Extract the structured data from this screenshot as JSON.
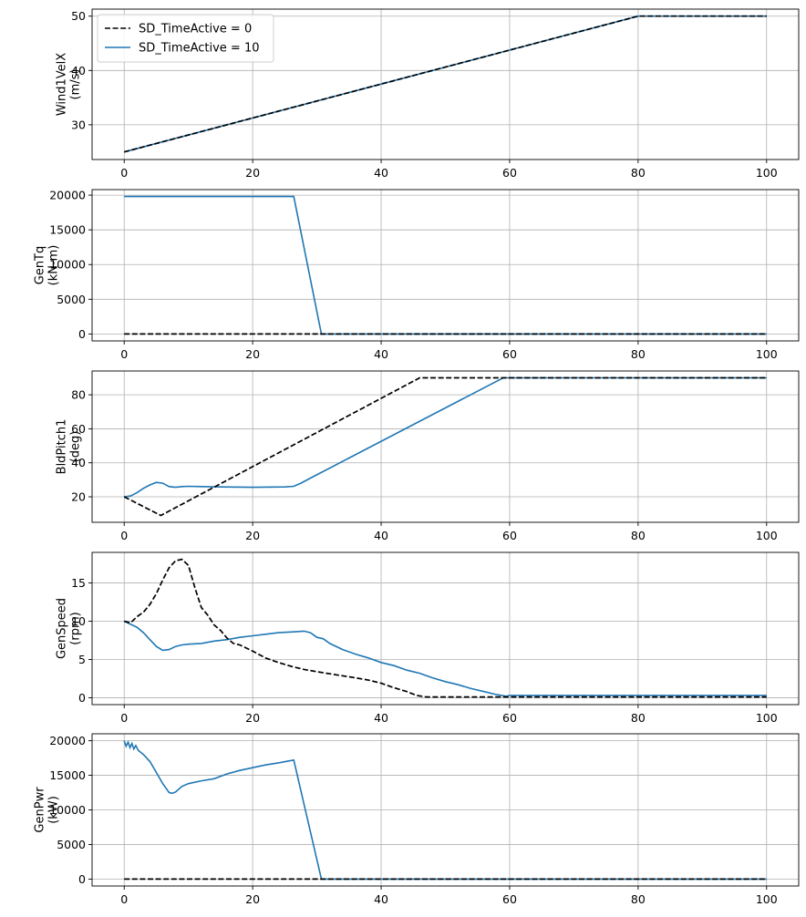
{
  "chart_data": [
    {
      "type": "line",
      "ylabel": [
        "Wind1VelX",
        "(m/s)"
      ],
      "xlim": [
        -5,
        105
      ],
      "ylim": [
        23.6,
        51.3
      ],
      "xticks": [
        0,
        20,
        40,
        60,
        80,
        100
      ],
      "yticks": [
        30,
        40,
        50
      ],
      "grid": true,
      "legend": {
        "placement": "top-left",
        "entries": [
          "SD_TimeActive = 0",
          "SD_TimeActive = 10"
        ]
      },
      "series": [
        {
          "name": "SD_TimeActive = 0",
          "style": "dashed",
          "color": "#000000",
          "points": [
            [
              0,
              25
            ],
            [
              80,
              50
            ],
            [
              100,
              50
            ]
          ]
        },
        {
          "name": "SD_TimeActive = 10",
          "style": "solid",
          "color": "#1f77b4",
          "points": [
            [
              0,
              25
            ],
            [
              80,
              50
            ],
            [
              100,
              50
            ]
          ]
        }
      ]
    },
    {
      "type": "line",
      "ylabel": [
        "GenTq",
        "(kN-m)"
      ],
      "xlim": [
        -5,
        105
      ],
      "ylim": [
        -1000,
        20800
      ],
      "xticks": [
        0,
        20,
        40,
        60,
        80,
        100
      ],
      "yticks": [
        0,
        5000,
        10000,
        15000,
        20000
      ],
      "grid": true,
      "series": [
        {
          "name": "SD_TimeActive = 0",
          "style": "dashed",
          "color": "#000000",
          "points": [
            [
              0,
              0
            ],
            [
              100,
              0
            ]
          ]
        },
        {
          "name": "SD_TimeActive = 10",
          "style": "solid",
          "color": "#1f77b4",
          "points": [
            [
              0,
              19800
            ],
            [
              26.4,
              19800
            ],
            [
              30.7,
              0
            ],
            [
              100,
              0
            ]
          ]
        }
      ]
    },
    {
      "type": "line",
      "ylabel": [
        "BldPitch1",
        "(deg)"
      ],
      "xlim": [
        -5,
        105
      ],
      "ylim": [
        5,
        94
      ],
      "xticks": [
        0,
        20,
        40,
        60,
        80,
        100
      ],
      "yticks": [
        20,
        40,
        60,
        80
      ],
      "grid": true,
      "series": [
        {
          "name": "SD_TimeActive = 0",
          "style": "dashed",
          "color": "#000000",
          "points": [
            [
              0,
              20
            ],
            [
              5.7,
              9
            ],
            [
              46,
              90
            ],
            [
              100,
              90
            ]
          ]
        },
        {
          "name": "SD_TimeActive = 10",
          "style": "solid",
          "color": "#1f77b4",
          "points": [
            [
              0,
              20
            ],
            [
              1,
              20.5
            ],
            [
              2,
              22.5
            ],
            [
              3,
              25
            ],
            [
              4,
              27
            ],
            [
              5,
              28.5
            ],
            [
              6,
              28
            ],
            [
              7,
              26
            ],
            [
              8,
              25.6
            ],
            [
              9,
              26
            ],
            [
              10,
              26.2
            ],
            [
              12,
              26
            ],
            [
              15,
              25.8
            ],
            [
              20,
              25.6
            ],
            [
              25,
              25.8
            ],
            [
              26.4,
              26.2
            ],
            [
              27.5,
              28
            ],
            [
              29,
              31
            ],
            [
              59,
              90
            ],
            [
              100,
              90
            ]
          ]
        }
      ]
    },
    {
      "type": "line",
      "ylabel": [
        "GenSpeed",
        "(rpm)"
      ],
      "xlim": [
        -5,
        105
      ],
      "ylim": [
        -0.9,
        19
      ],
      "xticks": [
        0,
        20,
        40,
        60,
        80,
        100
      ],
      "yticks": [
        0,
        5,
        10,
        15
      ],
      "grid": true,
      "series": [
        {
          "name": "SD_TimeActive = 0",
          "style": "dashed",
          "color": "#000000",
          "points": [
            [
              0,
              10
            ],
            [
              1,
              9.8
            ],
            [
              2,
              10.6
            ],
            [
              3,
              11.2
            ],
            [
              4,
              12.2
            ],
            [
              5,
              13.6
            ],
            [
              6,
              15.4
            ],
            [
              7,
              17
            ],
            [
              8,
              17.9
            ],
            [
              9,
              18.1
            ],
            [
              10,
              17.3
            ],
            [
              11,
              14.4
            ],
            [
              12,
              11.8
            ],
            [
              13,
              10.8
            ],
            [
              14,
              9.5
            ],
            [
              15,
              8.8
            ],
            [
              16,
              7.8
            ],
            [
              17,
              7.1
            ],
            [
              18,
              6.9
            ],
            [
              20,
              6.1
            ],
            [
              22,
              5.2
            ],
            [
              24,
              4.6
            ],
            [
              26,
              4.1
            ],
            [
              28,
              3.7
            ],
            [
              30,
              3.4
            ],
            [
              33,
              3
            ],
            [
              36,
              2.6
            ],
            [
              38,
              2.3
            ],
            [
              40,
              1.9
            ],
            [
              42,
              1.3
            ],
            [
              44,
              0.8
            ],
            [
              45.5,
              0.3
            ],
            [
              47,
              0.1
            ],
            [
              60,
              0.1
            ],
            [
              100,
              0.1
            ]
          ]
        },
        {
          "name": "SD_TimeActive = 10",
          "style": "solid",
          "color": "#1f77b4",
          "points": [
            [
              0,
              10
            ],
            [
              1,
              9.6
            ],
            [
              2,
              9.2
            ],
            [
              3,
              8.5
            ],
            [
              4,
              7.6
            ],
            [
              5,
              6.7
            ],
            [
              6,
              6.2
            ],
            [
              7,
              6.3
            ],
            [
              8,
              6.7
            ],
            [
              9,
              6.9
            ],
            [
              10,
              7
            ],
            [
              12,
              7.1
            ],
            [
              14,
              7.4
            ],
            [
              16,
              7.6
            ],
            [
              18,
              7.9
            ],
            [
              20,
              8.1
            ],
            [
              22,
              8.3
            ],
            [
              24,
              8.5
            ],
            [
              26,
              8.6
            ],
            [
              28,
              8.7
            ],
            [
              29,
              8.5
            ],
            [
              30,
              7.9
            ],
            [
              31,
              7.7
            ],
            [
              32,
              7.1
            ],
            [
              34,
              6.3
            ],
            [
              36,
              5.7
            ],
            [
              38,
              5.2
            ],
            [
              40,
              4.6
            ],
            [
              42,
              4.2
            ],
            [
              44,
              3.6
            ],
            [
              46,
              3.2
            ],
            [
              48,
              2.6
            ],
            [
              50,
              2.1
            ],
            [
              52,
              1.7
            ],
            [
              54,
              1.2
            ],
            [
              56,
              0.8
            ],
            [
              58,
              0.4
            ],
            [
              59.5,
              0.2
            ],
            [
              60,
              0.3
            ],
            [
              100,
              0.3
            ]
          ]
        }
      ]
    },
    {
      "type": "line",
      "ylabel": [
        "GenPwr",
        "(kW)"
      ],
      "xlim": [
        -5,
        105
      ],
      "ylim": [
        -1000,
        21000
      ],
      "xticks": [
        0,
        20,
        40,
        60,
        80,
        100
      ],
      "yticks": [
        0,
        5000,
        10000,
        15000,
        20000
      ],
      "grid": true,
      "series": [
        {
          "name": "SD_TimeActive = 0",
          "style": "dashed",
          "color": "#000000",
          "points": [
            [
              0,
              0
            ],
            [
              100,
              0
            ]
          ]
        },
        {
          "name": "SD_TimeActive = 10",
          "style": "solid",
          "color": "#1f77b4",
          "points": [
            [
              0,
              20000
            ],
            [
              0.3,
              19200
            ],
            [
              0.6,
              19800
            ],
            [
              0.9,
              19000
            ],
            [
              1.2,
              19600
            ],
            [
              1.5,
              18800
            ],
            [
              1.8,
              19300
            ],
            [
              2.2,
              18600
            ],
            [
              3,
              18000
            ],
            [
              4,
              17000
            ],
            [
              5,
              15400
            ],
            [
              6,
              13800
            ],
            [
              7,
              12500
            ],
            [
              7.5,
              12400
            ],
            [
              8,
              12600
            ],
            [
              9,
              13400
            ],
            [
              10,
              13800
            ],
            [
              12,
              14200
            ],
            [
              14,
              14500
            ],
            [
              16,
              15200
            ],
            [
              18,
              15700
            ],
            [
              20,
              16100
            ],
            [
              22,
              16500
            ],
            [
              24,
              16800
            ],
            [
              26.4,
              17200
            ],
            [
              30.7,
              0
            ],
            [
              100,
              0
            ]
          ]
        }
      ]
    }
  ]
}
